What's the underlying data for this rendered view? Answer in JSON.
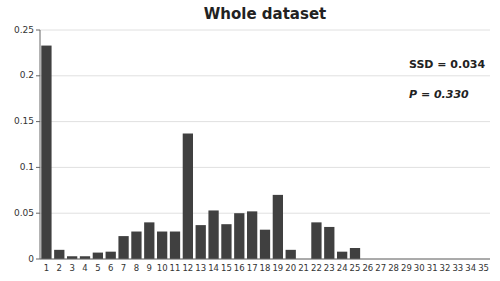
{
  "chart_data": {
    "type": "bar",
    "title": "Whole dataset",
    "annotations": [
      "SSD = 0.034",
      "P = 0.330"
    ],
    "categories": [
      1,
      2,
      3,
      4,
      5,
      6,
      7,
      8,
      9,
      10,
      11,
      12,
      13,
      14,
      15,
      16,
      17,
      18,
      19,
      20,
      21,
      22,
      23,
      24,
      25,
      26,
      27,
      28,
      29,
      30,
      31,
      32,
      33,
      34,
      35
    ],
    "values": [
      0.233,
      0.01,
      0.003,
      0.003,
      0.007,
      0.008,
      0.025,
      0.03,
      0.04,
      0.03,
      0.03,
      0.137,
      0.037,
      0.053,
      0.038,
      0.05,
      0.052,
      0.032,
      0.07,
      0.01,
      0.0,
      0.04,
      0.035,
      0.008,
      0.012,
      0.0,
      0.0,
      0.0,
      0.0,
      0.0,
      0.0,
      0.0,
      0.0,
      0.0,
      0.0
    ],
    "color": "#404040",
    "ylim": [
      0,
      0.25
    ],
    "yticks": [
      0,
      0.05,
      0.1,
      0.15,
      0.2,
      0.25
    ],
    "grid": true
  }
}
